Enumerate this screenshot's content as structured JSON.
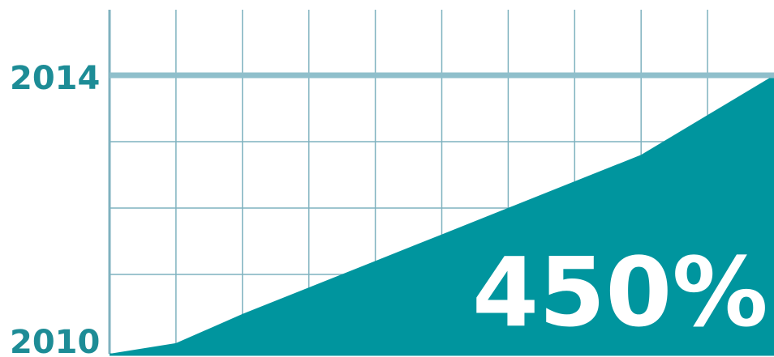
{
  "chart_data": {
    "type": "area",
    "y_tick_labels": [
      "2014",
      "2010"
    ],
    "x": [
      0,
      1,
      2,
      3,
      4,
      5,
      6,
      7,
      8,
      9
    ],
    "values": [
      0,
      8,
      30,
      50,
      70,
      90,
      110,
      130,
      150,
      210
    ],
    "ylim": [
      0,
      210
    ],
    "grid": true,
    "annotation": "450%",
    "colors": {
      "fill": "#00959e",
      "grid": "#7fb2bf",
      "highlight_line": "#8fbfcb",
      "axis_text": "#1d8c96",
      "annotation_text": "#ffffff"
    }
  }
}
